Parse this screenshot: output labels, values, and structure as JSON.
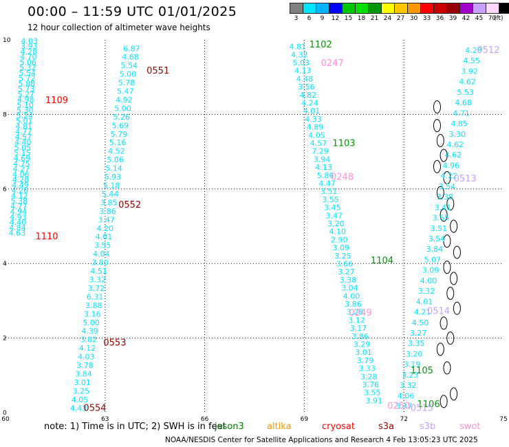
{
  "header": {
    "title": "00:00 – 11:59 UTC 01/01/2025",
    "subtitle": "12 hour collection of altimeter wave heights"
  },
  "legend": {
    "unit": "(ft)",
    "levels": [
      {
        "label": "3",
        "color": "#7f7f7f"
      },
      {
        "label": "6",
        "color": "#00e5ff"
      },
      {
        "label": "9",
        "color": "#00b4ff"
      },
      {
        "label": "12",
        "color": "#0000ff"
      },
      {
        "label": "15",
        "color": "#00c800"
      },
      {
        "label": "18",
        "color": "#00e000"
      },
      {
        "label": "21",
        "color": "#009600"
      },
      {
        "label": "24",
        "color": "#ffff00"
      },
      {
        "label": "27",
        "color": "#ffc800"
      },
      {
        "label": "30",
        "color": "#ff9600"
      },
      {
        "label": "33",
        "color": "#ff0000"
      },
      {
        "label": "36",
        "color": "#c80000"
      },
      {
        "label": "39",
        "color": "#960000"
      },
      {
        "label": "42",
        "color": "#a000c8"
      },
      {
        "label": "45",
        "color": "#c8a0ff"
      },
      {
        "label": "70",
        "color": "#ffd7ff"
      },
      {
        "label": "",
        "color": "#000000"
      }
    ]
  },
  "notes": {
    "text": "note:  1) Time is in UTC; 2) SWH is in feet",
    "credit": "NOAA/NESDIS Center for Satellite Applications and Research     4 Feb 13:05:23 UTC 2025"
  },
  "satellites": [
    {
      "name": "jason3",
      "color": "#007800"
    },
    {
      "name": "altika",
      "color": "#ff9600"
    },
    {
      "name": "cryosat",
      "color": "#ff0000"
    },
    {
      "name": "s3a",
      "color": "#960000"
    },
    {
      "name": "s3b",
      "color": "#c8a0ff"
    },
    {
      "name": "swot",
      "color": "#ff90d8"
    }
  ],
  "chart_data": {
    "type": "scatter",
    "title": "00:00 – 11:59 UTC 01/01/2025",
    "xlabel": "",
    "ylabel": "",
    "xlim": [
      60,
      75
    ],
    "ylim": [
      0,
      10
    ],
    "x_ticks": [
      "60",
      "63",
      "66",
      "69",
      "72",
      "75"
    ],
    "y_ticks": [
      "0",
      "2",
      "4",
      "6",
      "8",
      "10"
    ],
    "grid": true,
    "pass_labels": [
      {
        "text": "1109",
        "x": 61.2,
        "y": 8.3,
        "color": "#ff0000"
      },
      {
        "text": "1110",
        "x": 60.9,
        "y": 4.65,
        "color": "#ff0000"
      },
      {
        "text": "0551",
        "x": 64.25,
        "y": 9.1,
        "color": "#960000"
      },
      {
        "text": "0552",
        "x": 63.4,
        "y": 5.5,
        "color": "#960000"
      },
      {
        "text": "0553",
        "x": 62.95,
        "y": 1.8,
        "color": "#960000"
      },
      {
        "text": "0554",
        "x": 62.35,
        "y": 0.05,
        "color": "#960000"
      },
      {
        "text": "1102",
        "x": 69.15,
        "y": 9.8,
        "color": "#009600"
      },
      {
        "text": "1103",
        "x": 69.85,
        "y": 7.15,
        "color": "#009600"
      },
      {
        "text": "1104",
        "x": 71.0,
        "y": 4.0,
        "color": "#009600"
      },
      {
        "text": "1105",
        "x": 72.2,
        "y": 1.05,
        "color": "#009600"
      },
      {
        "text": "1106",
        "x": 72.4,
        "y": 0.15,
        "color": "#009600"
      },
      {
        "text": "0247",
        "x": 69.5,
        "y": 9.3,
        "color": "#ff90d8"
      },
      {
        "text": "0248",
        "x": 69.8,
        "y": 6.25,
        "color": "#ff90d8"
      },
      {
        "text": "0249",
        "x": 70.35,
        "y": 2.6,
        "color": "#ff90d8"
      },
      {
        "text": "0250",
        "x": 71.5,
        "y": 0.1,
        "color": "#ff90d8"
      },
      {
        "text": "0512",
        "x": 74.2,
        "y": 9.65,
        "color": "#c8a0ff"
      },
      {
        "text": "0513",
        "x": 73.5,
        "y": 6.2,
        "color": "#c8a0ff"
      },
      {
        "text": "0514",
        "x": 72.7,
        "y": 2.65,
        "color": "#c8a0ff"
      },
      {
        "text": "0515",
        "x": 72.2,
        "y": 0.05,
        "color": "#c8a0ff"
      }
    ],
    "series": [
      {
        "name": "1109-1110",
        "color": "#00e5ff",
        "points": [
          {
            "x": 60.7,
            "y": 9.9,
            "v": "4.03"
          },
          {
            "x": 60.35,
            "y": 4.8,
            "v": "4.63"
          },
          {
            "x": 60.5,
            "y": 7.0,
            "v": "5.20"
          }
        ],
        "values": [
          "4.03",
          "3.93",
          "4.28",
          "4.70",
          "5.06",
          "5.32",
          "5.54",
          "5.72",
          "5.88",
          "5.73",
          "5.27",
          "4.98",
          "5.10",
          "5.30",
          "5.24",
          "5.01",
          "4.81",
          "4.77",
          "4.57",
          "4.40",
          "5.05",
          "5.15",
          "4.69",
          "4.75",
          "4.27",
          "4.06",
          "4.28",
          "4.49",
          "4.26",
          "4.12",
          "5.38",
          "4.77",
          "4.94",
          "4.93",
          "4.40",
          "4.84",
          "4.63"
        ],
        "x_start": 60.72,
        "y_start": 9.9,
        "x_end": 60.35,
        "y_end": 4.75
      },
      {
        "name": "0551-0554",
        "color": "#00e5ff",
        "values": [
          "6.87",
          "4.68",
          "5.54",
          "5.00",
          "5.78",
          "5.47",
          "4.92",
          "5.00",
          "5.26",
          "5.69",
          "5.79",
          "5.16",
          "4.52",
          "5.06",
          "5.14",
          "5.93",
          "5.18",
          "5.44",
          "3.85",
          "3.86",
          "3.47",
          "4.20",
          "4.01",
          "3.55",
          "4.04",
          "3.80",
          "4.51",
          "3.32",
          "3.72",
          "6.31",
          "3.88",
          "3.16",
          "5.00",
          "4.39",
          "3.82",
          "4.12",
          "4.03",
          "3.78",
          "3.84",
          "3.01",
          "3.25",
          "4.05",
          "4.43"
        ],
        "x_start": 63.8,
        "y_start": 9.7,
        "x_end": 62.2,
        "y_end": 0.05
      },
      {
        "name": "1102-1106 / 0247-0250",
        "color": "#00e5ff",
        "values": [
          "4.81",
          "4.32",
          "5.03",
          "4.13",
          "4.48",
          "3.56",
          "4.82",
          "4.24",
          "4.01",
          "4.33",
          "4.89",
          "4.05",
          "4.57",
          "7.29",
          "3.94",
          "4.13",
          "5.86",
          "4.47",
          "3.51",
          "3.55",
          "3.45",
          "3.47",
          "3.20",
          "4.10",
          "2.90",
          "3.09",
          "3.25",
          "3.66",
          "3.27",
          "3.38",
          "3.04",
          "4.00",
          "3.86",
          "3.28",
          "3.12",
          "3.17",
          "3.86",
          "3.29",
          "3.01",
          "3.79",
          "3.33",
          "3.28",
          "3.76",
          "3.55",
          "3.91"
        ],
        "x_start": 68.8,
        "y_start": 9.75,
        "x_end": 71.1,
        "y_end": 0.25
      },
      {
        "name": "0512-0515",
        "color": "#00e5ff",
        "values": [
          "4.28",
          "4.55",
          "3.92",
          "4.62",
          "5.53",
          "4.68",
          "4.71",
          "4.85",
          "3.30",
          "4.62",
          "4.62",
          "4.96",
          "4.22",
          "3.54",
          "3.38",
          "3.41",
          "3.55",
          "3.51",
          "3.54",
          "3.84",
          "5.07",
          "3.09",
          "4.00",
          "3.32",
          "4.01",
          "4.21",
          "4.50",
          "3.27",
          "3.35",
          "3.20",
          "3.19",
          "3.23",
          "3.32",
          "4.06",
          "3.47"
        ],
        "x_start": 74.1,
        "y_start": 9.65,
        "x_end": 72.0,
        "y_end": 0.1
      }
    ]
  }
}
